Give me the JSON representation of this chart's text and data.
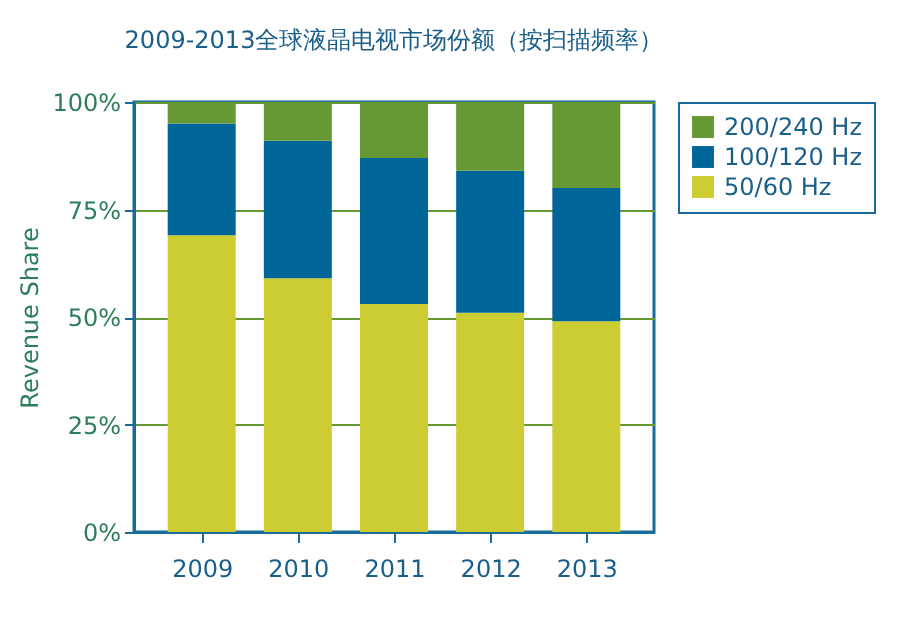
{
  "chart_data": {
    "type": "bar",
    "stacked": true,
    "title": "2009-2013全球液晶电视市场份额（按扫描频率）",
    "ylabel": "Revenue Share",
    "categories": [
      "2009",
      "2010",
      "2011",
      "2012",
      "2013"
    ],
    "series": [
      {
        "name": "50/60 Hz",
        "color": "#cccc33",
        "values": [
          69,
          59,
          53,
          51,
          49
        ]
      },
      {
        "name": "100/120 Hz",
        "color": "#006699",
        "values": [
          26,
          32,
          34,
          33,
          31
        ]
      },
      {
        "name": "200/240 Hz",
        "color": "#669933",
        "values": [
          5,
          9,
          13,
          16,
          20
        ]
      }
    ],
    "ylim": [
      0,
      100
    ],
    "yticks": [
      {
        "value": 0,
        "label": "0%"
      },
      {
        "value": 25,
        "label": "25%"
      },
      {
        "value": 50,
        "label": "50%"
      },
      {
        "value": 75,
        "label": "75%"
      },
      {
        "value": 100,
        "label": "100%"
      }
    ],
    "grid": "y",
    "legend": "right"
  }
}
